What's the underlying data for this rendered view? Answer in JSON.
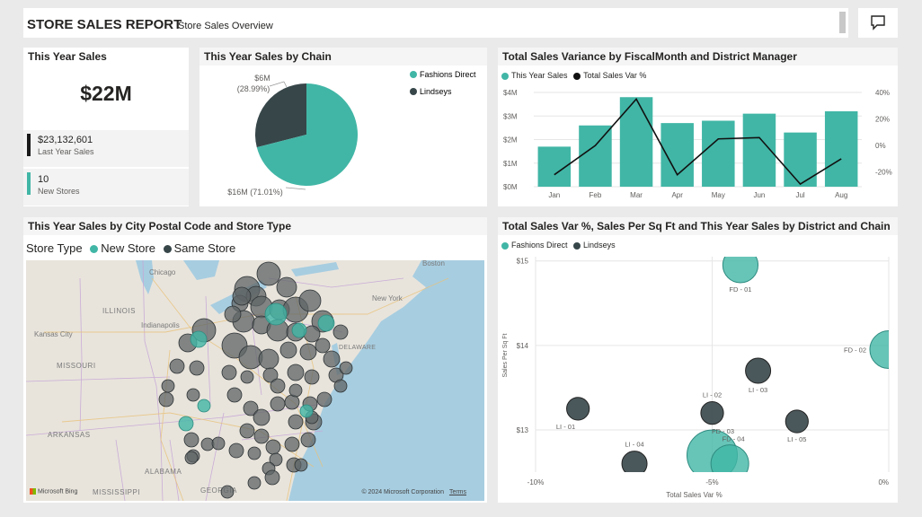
{
  "header": {
    "title": "STORE SALES REPORT",
    "subtitle": "Store Sales Overview",
    "comment_icon": "comment-icon"
  },
  "colors": {
    "teal": "#41b6a6",
    "dark": "#374649",
    "bubble_gray": "#5f6466"
  },
  "card": {
    "title": "This Year Sales",
    "value": "$22M",
    "kpi1_value": "$23,132,601",
    "kpi1_label": "Last Year Sales",
    "kpi2_value": "10",
    "kpi2_label": "New Stores"
  },
  "pie": {
    "title": "This Year Sales by Chain",
    "label_small_value": "$6M",
    "label_small_pct": "(28.99%)",
    "label_large": "$16M (71.01%)"
  },
  "combo": {
    "title": "Total Sales Variance by FiscalMonth and District Manager",
    "legend_sales": "This Year Sales",
    "legend_var": "Total Sales Var %"
  },
  "map": {
    "title": "This Year Sales by City Postal Code and Store Type",
    "legend_title": "Store Type",
    "legend_new": "New Store",
    "legend_same": "Same Store",
    "bing": "Microsoft Bing",
    "copyright": "© 2024 Microsoft Corporation",
    "terms": "Terms",
    "labels": {
      "chicago": "Chicago",
      "illinois": "ILLINOIS",
      "indianapolis": "Indianapolis",
      "kansas_city": "Kansas City",
      "missouri": "MISSOURI",
      "arkansas": "ARKANSAS",
      "alabama": "ALABAMA",
      "mississippi": "MISSISSIPPI",
      "georgia": "GEORGIA",
      "boston": "Boston",
      "new_york": "New York",
      "delaware": "DELAWARE"
    }
  },
  "scatter": {
    "title": "Total Sales Var %, Sales Per Sq Ft and This Year Sales by District and Chain",
    "legend_fd": "Fashions Direct",
    "legend_li": "Lindseys"
  },
  "chart_data": [
    {
      "type": "pie",
      "title": "This Year Sales by Chain",
      "legend": [
        "Fashions Direct",
        "Lindseys"
      ],
      "slices": [
        {
          "name": "Fashions Direct",
          "value": 16,
          "percent": 71.01,
          "label": "$16M (71.01%)"
        },
        {
          "name": "Lindseys",
          "value": 6,
          "percent": 28.99,
          "label": "$6M (28.99%)"
        }
      ],
      "legend_position": "right"
    },
    {
      "type": "bar",
      "title": "Total Sales Variance by FiscalMonth and District Manager",
      "categories": [
        "Jan",
        "Feb",
        "Mar",
        "Apr",
        "May",
        "Jun",
        "Jul",
        "Aug"
      ],
      "series": [
        {
          "name": "This Year Sales",
          "kind": "bar",
          "axis": "left",
          "values": [
            1.7,
            2.6,
            3.8,
            2.7,
            2.8,
            3.1,
            2.3,
            3.2
          ]
        },
        {
          "name": "Total Sales Var %",
          "kind": "line",
          "axis": "right",
          "values": [
            -22,
            0,
            35,
            -22,
            5,
            6,
            -29,
            -10
          ]
        }
      ],
      "y_left_ticks": [
        "$0M",
        "$1M",
        "$2M",
        "$3M",
        "$4M"
      ],
      "y_left_range": [
        0,
        4
      ],
      "y_right_ticks": [
        "40%",
        "20%",
        "0%",
        "-20%"
      ],
      "y_right_range": [
        -31,
        40
      ],
      "grid": true,
      "legend_position": "top-left"
    },
    {
      "type": "scatter",
      "title": "Total Sales Var %, Sales Per Sq Ft and This Year Sales by District and Chain",
      "xlabel": "Total Sales Var %",
      "ylabel": "Sales Per Sq Ft",
      "x_ticks": [
        "-10%",
        "-5%",
        "0%"
      ],
      "y_ticks": [
        "$15",
        "$14",
        "$13"
      ],
      "x_range": [
        -10,
        0
      ],
      "y_range": [
        12.5,
        15.05
      ],
      "series": [
        {
          "name": "Fashions Direct",
          "points": [
            {
              "label": "FD - 01",
              "x": -4.2,
              "y": 14.95,
              "size": 1.4
            },
            {
              "label": "FD - 02",
              "x": 0.0,
              "y": 13.95,
              "size": 1.5
            },
            {
              "label": "FD - 03",
              "x": -5.0,
              "y": 12.7,
              "size": 2.0
            },
            {
              "label": "FD - 04",
              "x": -4.5,
              "y": 12.6,
              "size": 1.5
            }
          ]
        },
        {
          "name": "Lindseys",
          "points": [
            {
              "label": "LI - 01",
              "x": -8.8,
              "y": 13.25,
              "size": 0.9
            },
            {
              "label": "LI - 02",
              "x": -5.0,
              "y": 13.2,
              "size": 0.9
            },
            {
              "label": "LI - 03",
              "x": -3.7,
              "y": 13.7,
              "size": 1.0
            },
            {
              "label": "LI - 04",
              "x": -7.2,
              "y": 12.6,
              "size": 1.0
            },
            {
              "label": "LI - 05",
              "x": -2.6,
              "y": 13.1,
              "size": 0.9
            }
          ]
        }
      ],
      "grid": true,
      "legend_position": "top-left"
    }
  ]
}
